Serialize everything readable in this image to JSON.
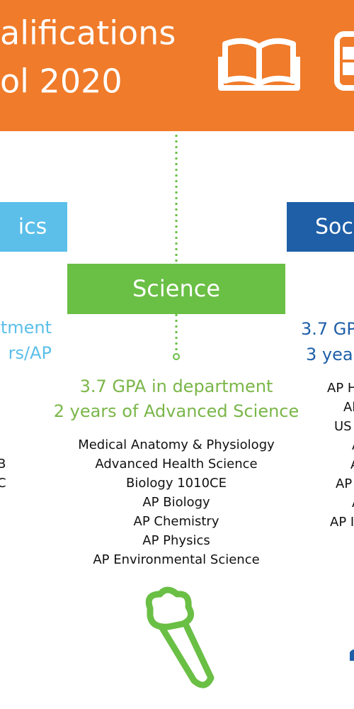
{
  "header": {
    "title_line1": "alifications",
    "title_line2": "ol  2020"
  },
  "left": {
    "heading": "ics",
    "req1": "tment",
    "req2": "rs/AP",
    "courses": [
      "B",
      "C"
    ]
  },
  "center": {
    "heading": "Science",
    "req1": "3.7 GPA in department",
    "req2": "2 years of Advanced Science",
    "courses": [
      "Medical Anatomy & Physiology",
      "Advanced Health Science",
      "Biology 1010CE",
      "AP Biology",
      "AP Chemistry",
      "AP Physics",
      "AP Environmental Science"
    ]
  },
  "right": {
    "heading": "Soc",
    "req1": "3.7 GP",
    "req2": "3 year",
    "courses": [
      "AP H",
      "Al",
      "US",
      "A",
      "A",
      "AP",
      "A",
      "AP I"
    ]
  }
}
